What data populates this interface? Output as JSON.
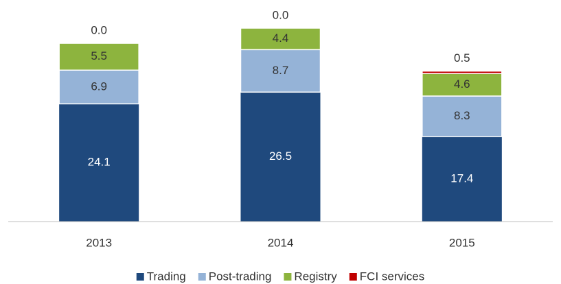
{
  "chart_data": {
    "type": "stacked_bar",
    "categories": [
      "2013",
      "2014",
      "2015"
    ],
    "series": [
      {
        "name": "Trading",
        "color": "#1f497d",
        "values": [
          24.1,
          26.5,
          17.4
        ],
        "value_labels": [
          "24.1",
          "26.5",
          "17.4"
        ]
      },
      {
        "name": "Post-trading",
        "color": "#95b3d7",
        "values": [
          6.9,
          8.7,
          8.3
        ],
        "value_labels": [
          "6.9",
          "8.7",
          "8.3"
        ]
      },
      {
        "name": "Registry",
        "color": "#8db43e",
        "values": [
          5.5,
          4.4,
          4.6
        ],
        "value_labels": [
          "5.5",
          "4.4",
          "4.6"
        ]
      },
      {
        "name": "FCI services",
        "color": "#c00000",
        "values": [
          0,
          0,
          0.5
        ],
        "value_labels": [
          "0.0",
          "0.0",
          "0.5"
        ]
      }
    ],
    "legend": "bottom"
  }
}
